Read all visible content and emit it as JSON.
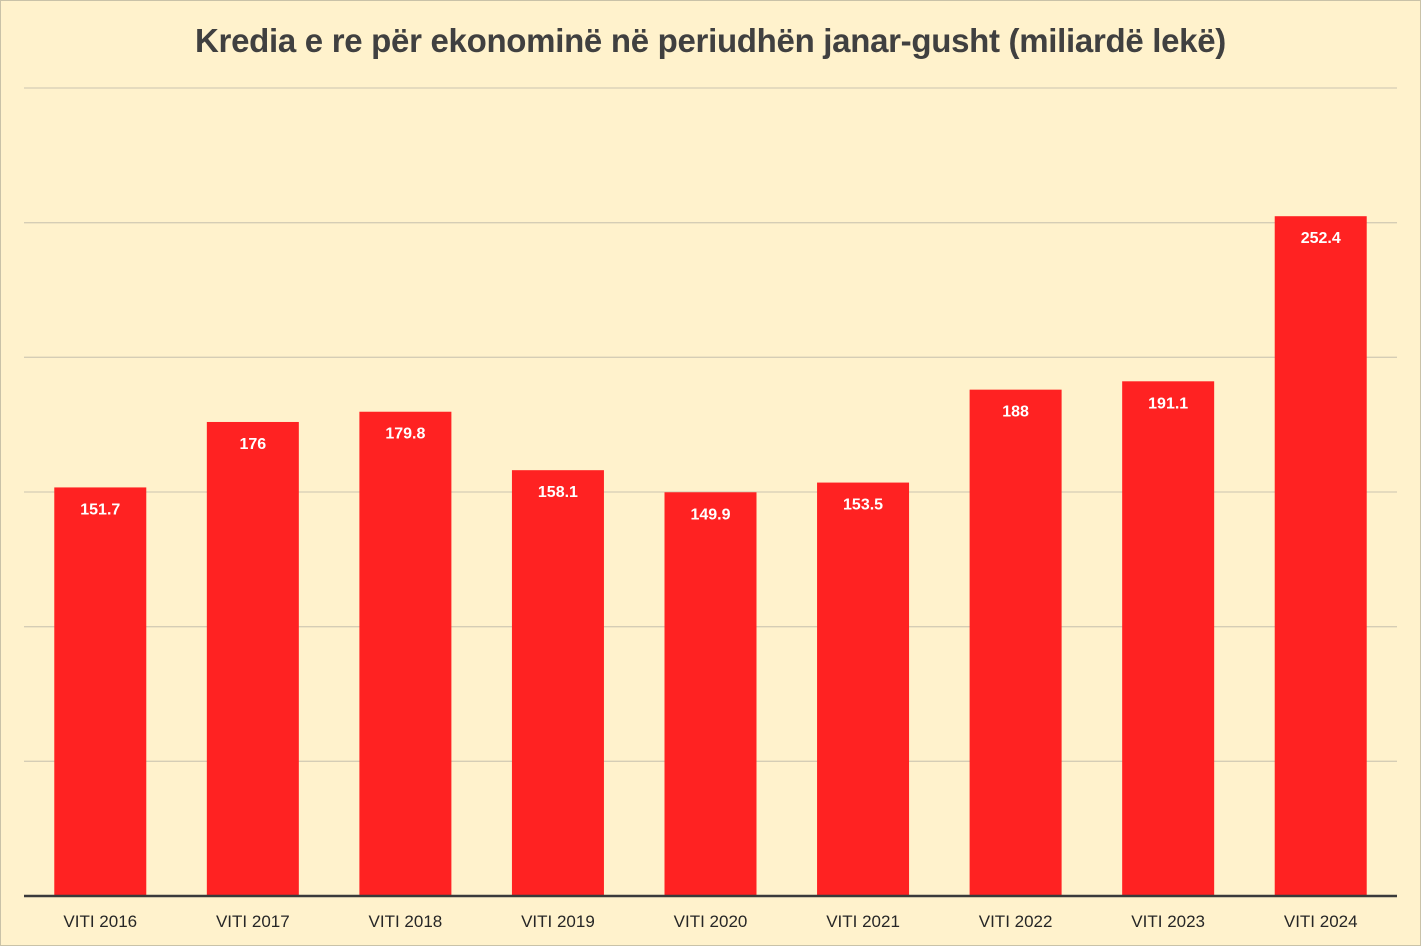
{
  "chart_data": {
    "type": "bar",
    "title": "Kredia e re për ekonominë në periudhën janar-gusht (miliardë lekë)",
    "categories": [
      "VITI 2016",
      "VITI 2017",
      "VITI 2018",
      "VITI 2019",
      "VITI 2020",
      "VITI 2021",
      "VITI 2022",
      "VITI 2023",
      "VITI 2024"
    ],
    "values": [
      151.7,
      176,
      179.8,
      158.1,
      149.9,
      153.5,
      188,
      191.1,
      252.4
    ],
    "value_labels": [
      "151.7",
      "176",
      "179.8",
      "158.1",
      "149.9",
      "153.5",
      "188",
      "191.1",
      "252.4"
    ],
    "ylim": [
      0,
      300
    ],
    "grid": true,
    "bar_color": "#ff2222",
    "background_color": "#fff2cc"
  }
}
